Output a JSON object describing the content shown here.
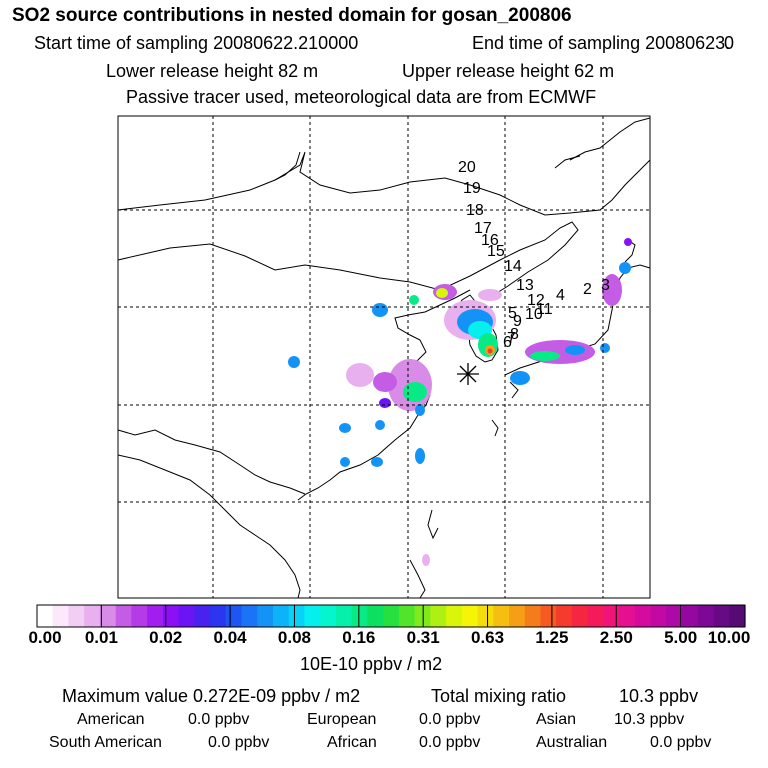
{
  "header": {
    "title": "SO2 source contributions in nested domain for gosan_200806",
    "start_label": "Start time of sampling 20080622.210000",
    "end_label": "End time of sampling 20080623.",
    "end_value": "0",
    "lower_height": "Lower release height   82 m",
    "upper_height": "Upper release height   62 m",
    "tracer_note": "Passive tracer used, meteorological data are from ECMWF"
  },
  "map": {
    "receptor_marker": "asterisk-icon",
    "trajectory_labels": [
      "20",
      "19",
      "18",
      "17",
      "16",
      "15",
      "14",
      "13",
      "12",
      "11",
      "10",
      "9",
      "8",
      "7",
      "6",
      "5",
      "4",
      "3",
      "2"
    ]
  },
  "colorbar": {
    "ticks": [
      "0.00",
      "0.01",
      "0.02",
      "0.04",
      "0.08",
      "0.16",
      "0.31",
      "0.63",
      "1.25",
      "2.50",
      "5.00",
      "10.00"
    ],
    "unit": "10E-10 ppbv / m2",
    "colors": [
      "#ffffff",
      "#fbe8fb",
      "#f2cdf4",
      "#e8b0ee",
      "#d98be8",
      "#c55ce6",
      "#b53be9",
      "#a21ef0",
      "#8c10f5",
      "#6b14f4",
      "#4a22f0",
      "#2c36f0",
      "#1f55f3",
      "#1b74f5",
      "#1493f7",
      "#0db3f8",
      "#08d2f8",
      "#06efef",
      "#05f5cf",
      "#06f0ab",
      "#08ea86",
      "#0de060",
      "#26e040",
      "#50e42a",
      "#80ea1c",
      "#aef012",
      "#d8f50a",
      "#f5f506",
      "#f5dc0b",
      "#f5be10",
      "#f59f15",
      "#f57c1a",
      "#f55a22",
      "#f53a2e",
      "#f52640",
      "#f51a5a",
      "#f0147a",
      "#e50f92",
      "#d50b9e",
      "#c209a4",
      "#ad09a6",
      "#9408a0",
      "#7e0896",
      "#680a86",
      "#550a74"
    ]
  },
  "stats": {
    "max_label": "Maximum value  0.272E-09 ppbv / m2",
    "total_label": "Total mixing ratio",
    "total_value": "10.3 ppbv",
    "regions": [
      {
        "name": "American",
        "value": "0.0 ppbv"
      },
      {
        "name": "European",
        "value": "0.0 ppbv"
      },
      {
        "name": "Asian",
        "value": "10.3 ppbv"
      },
      {
        "name": "South American",
        "value": "0.0 ppbv"
      },
      {
        "name": "African",
        "value": "0.0 ppbv"
      },
      {
        "name": "Australian",
        "value": "0.0 ppbv"
      }
    ]
  }
}
